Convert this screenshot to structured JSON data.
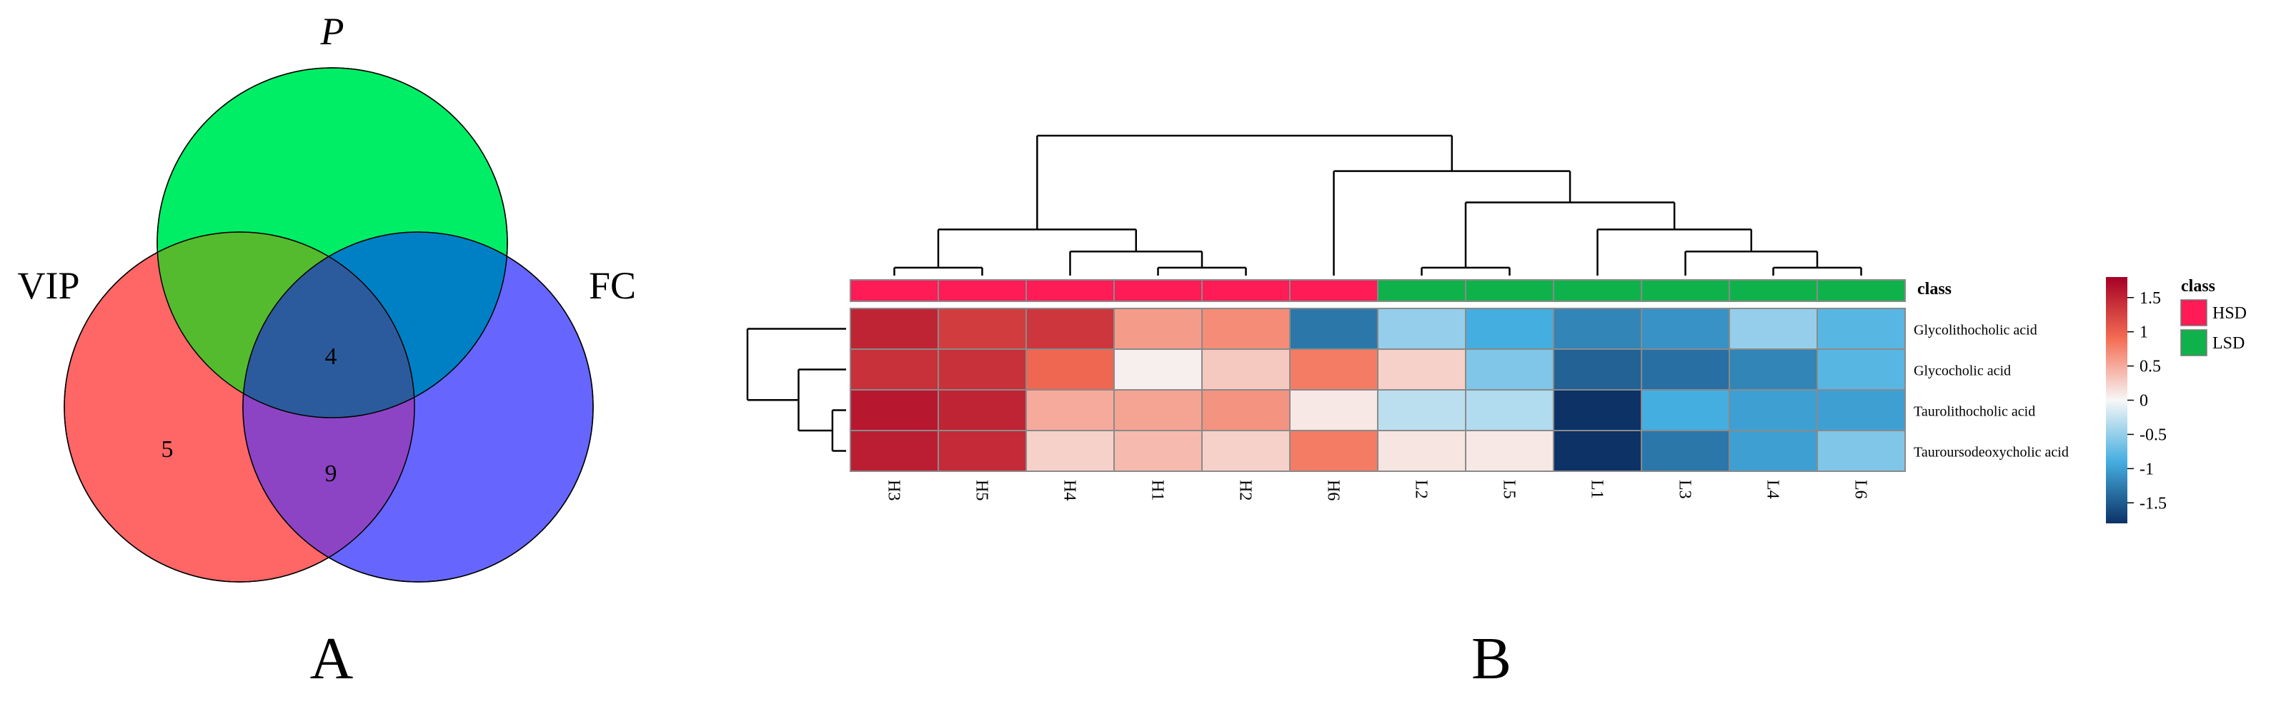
{
  "panel_a": {
    "label": "A",
    "sets": [
      {
        "name": "P",
        "color": "#00ee66"
      },
      {
        "name": "VIP",
        "color": "#ff6666"
      },
      {
        "name": "FC",
        "color": "#6666ff"
      }
    ],
    "region_counts": {
      "vip_only": "5",
      "all_three": "4",
      "vip_fc": "9"
    }
  },
  "panel_b": {
    "label": "B",
    "annotation_title": "class",
    "legend": {
      "title": "class",
      "entries": [
        {
          "label": "HSD",
          "color": "#ff1b55"
        },
        {
          "label": "LSD",
          "color": "#0fb24a"
        }
      ]
    }
  },
  "chart_data": [
    {
      "type": "venn",
      "sets": [
        "P",
        "VIP",
        "FC"
      ],
      "regions": [
        {
          "sets": [
            "VIP"
          ],
          "value": 5
        },
        {
          "sets": [
            "P",
            "VIP",
            "FC"
          ],
          "value": 4
        },
        {
          "sets": [
            "VIP",
            "FC"
          ],
          "value": 9
        }
      ]
    },
    {
      "type": "heatmap",
      "columns": [
        "H3",
        "H5",
        "H4",
        "H1",
        "H2",
        "H6",
        "L2",
        "L5",
        "L1",
        "L3",
        "L4",
        "L6"
      ],
      "column_class": [
        "HSD",
        "HSD",
        "HSD",
        "HSD",
        "HSD",
        "HSD",
        "LSD",
        "LSD",
        "LSD",
        "LSD",
        "LSD",
        "LSD"
      ],
      "rows": [
        "Glycolithocholic acid",
        "Glycocholic acid",
        "Taurolithocholic acid",
        "Tauroursodeoxycholic acid"
      ],
      "values": [
        [
          1.5,
          1.3,
          1.35,
          0.6,
          0.7,
          -1.3,
          -0.5,
          -0.9,
          -1.2,
          -1.1,
          -0.5,
          -0.8
        ],
        [
          1.4,
          1.4,
          0.95,
          0.05,
          0.3,
          0.8,
          0.25,
          -0.6,
          -1.45,
          -1.35,
          -1.2,
          -0.8
        ],
        [
          1.6,
          1.5,
          0.5,
          0.55,
          0.65,
          0.1,
          -0.3,
          -0.35,
          -1.8,
          -0.9,
          -1.0,
          -1.0
        ],
        [
          1.55,
          1.45,
          0.25,
          0.4,
          0.25,
          0.8,
          0.12,
          0.1,
          -1.8,
          -1.3,
          -1.0,
          -0.6
        ]
      ],
      "colorbar": {
        "range": [
          -1.8,
          1.8
        ],
        "ticks": [
          1.5,
          1,
          0.5,
          0,
          -0.5,
          -1,
          -1.5
        ],
        "tick_labels": [
          "1.5",
          "1",
          "0.5",
          "0",
          "-0.5",
          "-1",
          "-1.5"
        ]
      },
      "column_dendrogram": "((H3,H5),(H4,(H1,H2))),(H6,((L2,L5),(L1,(L3,(L4,L6)))))",
      "row_dendrogram": "(Glycolithocholic acid,(Glycocholic acid,(Taurolithocholic acid,Tauroursodeoxycholic acid)))"
    }
  ]
}
